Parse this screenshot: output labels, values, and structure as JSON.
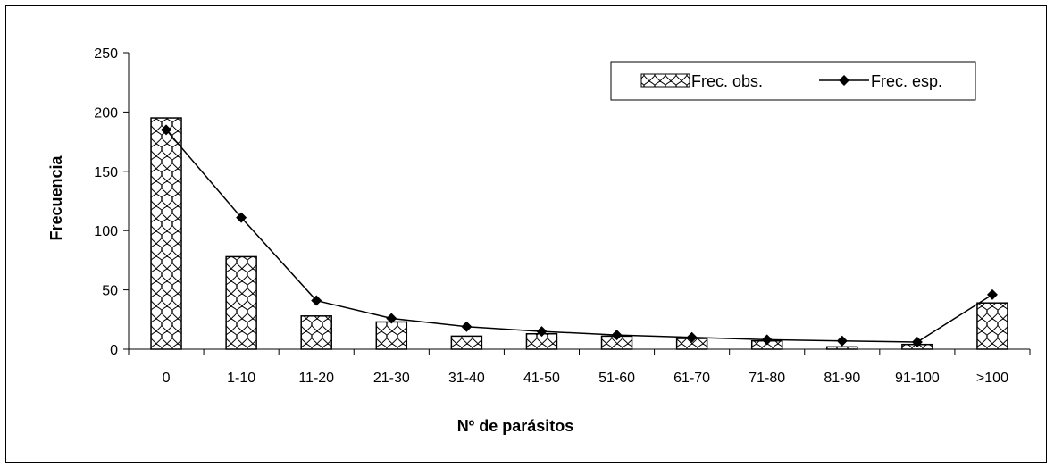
{
  "chart_data": {
    "type": "bar",
    "xlabel": "Nº de parásitos",
    "ylabel": "Frecuencia",
    "ylim": [
      0,
      250
    ],
    "yticks": [
      0,
      50,
      100,
      150,
      200,
      250
    ],
    "categories": [
      "0",
      "1-10",
      "11-20",
      "21-30",
      "31-40",
      "41-50",
      "51-60",
      "61-70",
      "71-80",
      "81-90",
      "91-100",
      ">100"
    ],
    "series": [
      {
        "name": "Frec. obs.",
        "kind": "bar",
        "values": [
          195,
          78,
          28,
          23,
          11,
          13,
          11,
          9,
          7,
          2,
          4,
          39
        ]
      },
      {
        "name": "Frec. esp.",
        "kind": "line",
        "values": [
          185,
          111,
          41,
          26,
          19,
          15,
          12,
          10,
          8,
          7,
          6,
          46
        ]
      }
    ],
    "legend": "top-right",
    "grid": false
  }
}
